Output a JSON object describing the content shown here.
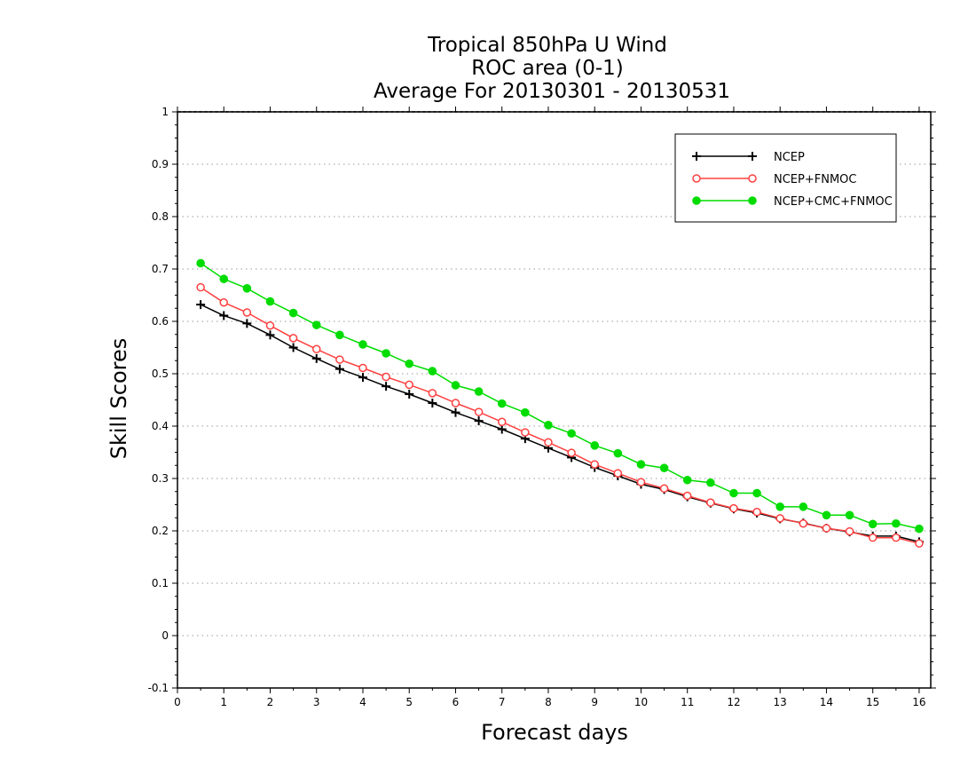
{
  "chart_data": {
    "type": "line",
    "title": [
      "Tropical 850hPa U Wind",
      "ROC area (0-1)",
      "Average For 20130301 - 20130531"
    ],
    "xlabel": "Forecast days",
    "ylabel": "Skill Scores",
    "xlim": [
      0,
      16.25
    ],
    "ylim": [
      -0.1,
      1
    ],
    "x_ticks": [
      0,
      1,
      2,
      3,
      4,
      5,
      6,
      7,
      8,
      9,
      10,
      11,
      12,
      13,
      14,
      15,
      16
    ],
    "y_ticks": [
      -0.1,
      0,
      0.1,
      0.2,
      0.3,
      0.4,
      0.5,
      0.6,
      0.7,
      0.8,
      0.9,
      1
    ],
    "y_tick_labels": [
      "-0.1",
      "0",
      "0.1",
      "0.2",
      "0.3",
      "0.4",
      "0.5",
      "0.6",
      "0.7",
      "0.8",
      "0.9",
      "1"
    ],
    "grid": "horizontal dotted",
    "legend_position": "top-right",
    "x": [
      0.5,
      1,
      1.5,
      2,
      2.5,
      3,
      3.5,
      4,
      4.5,
      5,
      5.5,
      6,
      6.5,
      7,
      7.5,
      8,
      8.5,
      9,
      9.5,
      10,
      10.5,
      11,
      11.5,
      12,
      12.5,
      13,
      13.5,
      14,
      14.5,
      15,
      15.5,
      16
    ],
    "series": [
      {
        "name": "NCEP",
        "color": "#000000",
        "marker": "plus",
        "values": [
          0.632,
          0.611,
          0.596,
          0.574,
          0.55,
          0.529,
          0.509,
          0.493,
          0.476,
          0.461,
          0.444,
          0.426,
          0.41,
          0.394,
          0.376,
          0.358,
          0.34,
          0.321,
          0.305,
          0.289,
          0.279,
          0.265,
          0.253,
          0.242,
          0.234,
          0.223,
          0.215,
          0.205,
          0.198,
          0.19,
          0.19,
          0.179
        ]
      },
      {
        "name": "NCEP+FNMOC",
        "color": "#ff4040",
        "marker": "open-circle",
        "values": [
          0.665,
          0.636,
          0.617,
          0.592,
          0.568,
          0.547,
          0.527,
          0.511,
          0.494,
          0.479,
          0.463,
          0.444,
          0.427,
          0.408,
          0.388,
          0.369,
          0.349,
          0.327,
          0.31,
          0.293,
          0.281,
          0.267,
          0.254,
          0.243,
          0.236,
          0.224,
          0.214,
          0.205,
          0.199,
          0.187,
          0.187,
          0.176
        ]
      },
      {
        "name": "NCEP+CMC+FNMOC",
        "color": "#00dc00",
        "marker": "filled-circle",
        "values": [
          0.711,
          0.681,
          0.663,
          0.638,
          0.616,
          0.593,
          0.574,
          0.556,
          0.539,
          0.519,
          0.505,
          0.478,
          0.466,
          0.443,
          0.426,
          0.402,
          0.386,
          0.363,
          0.348,
          0.327,
          0.32,
          0.297,
          0.292,
          0.272,
          0.272,
          0.246,
          0.246,
          0.23,
          0.23,
          0.213,
          0.214,
          0.204
        ]
      }
    ]
  }
}
